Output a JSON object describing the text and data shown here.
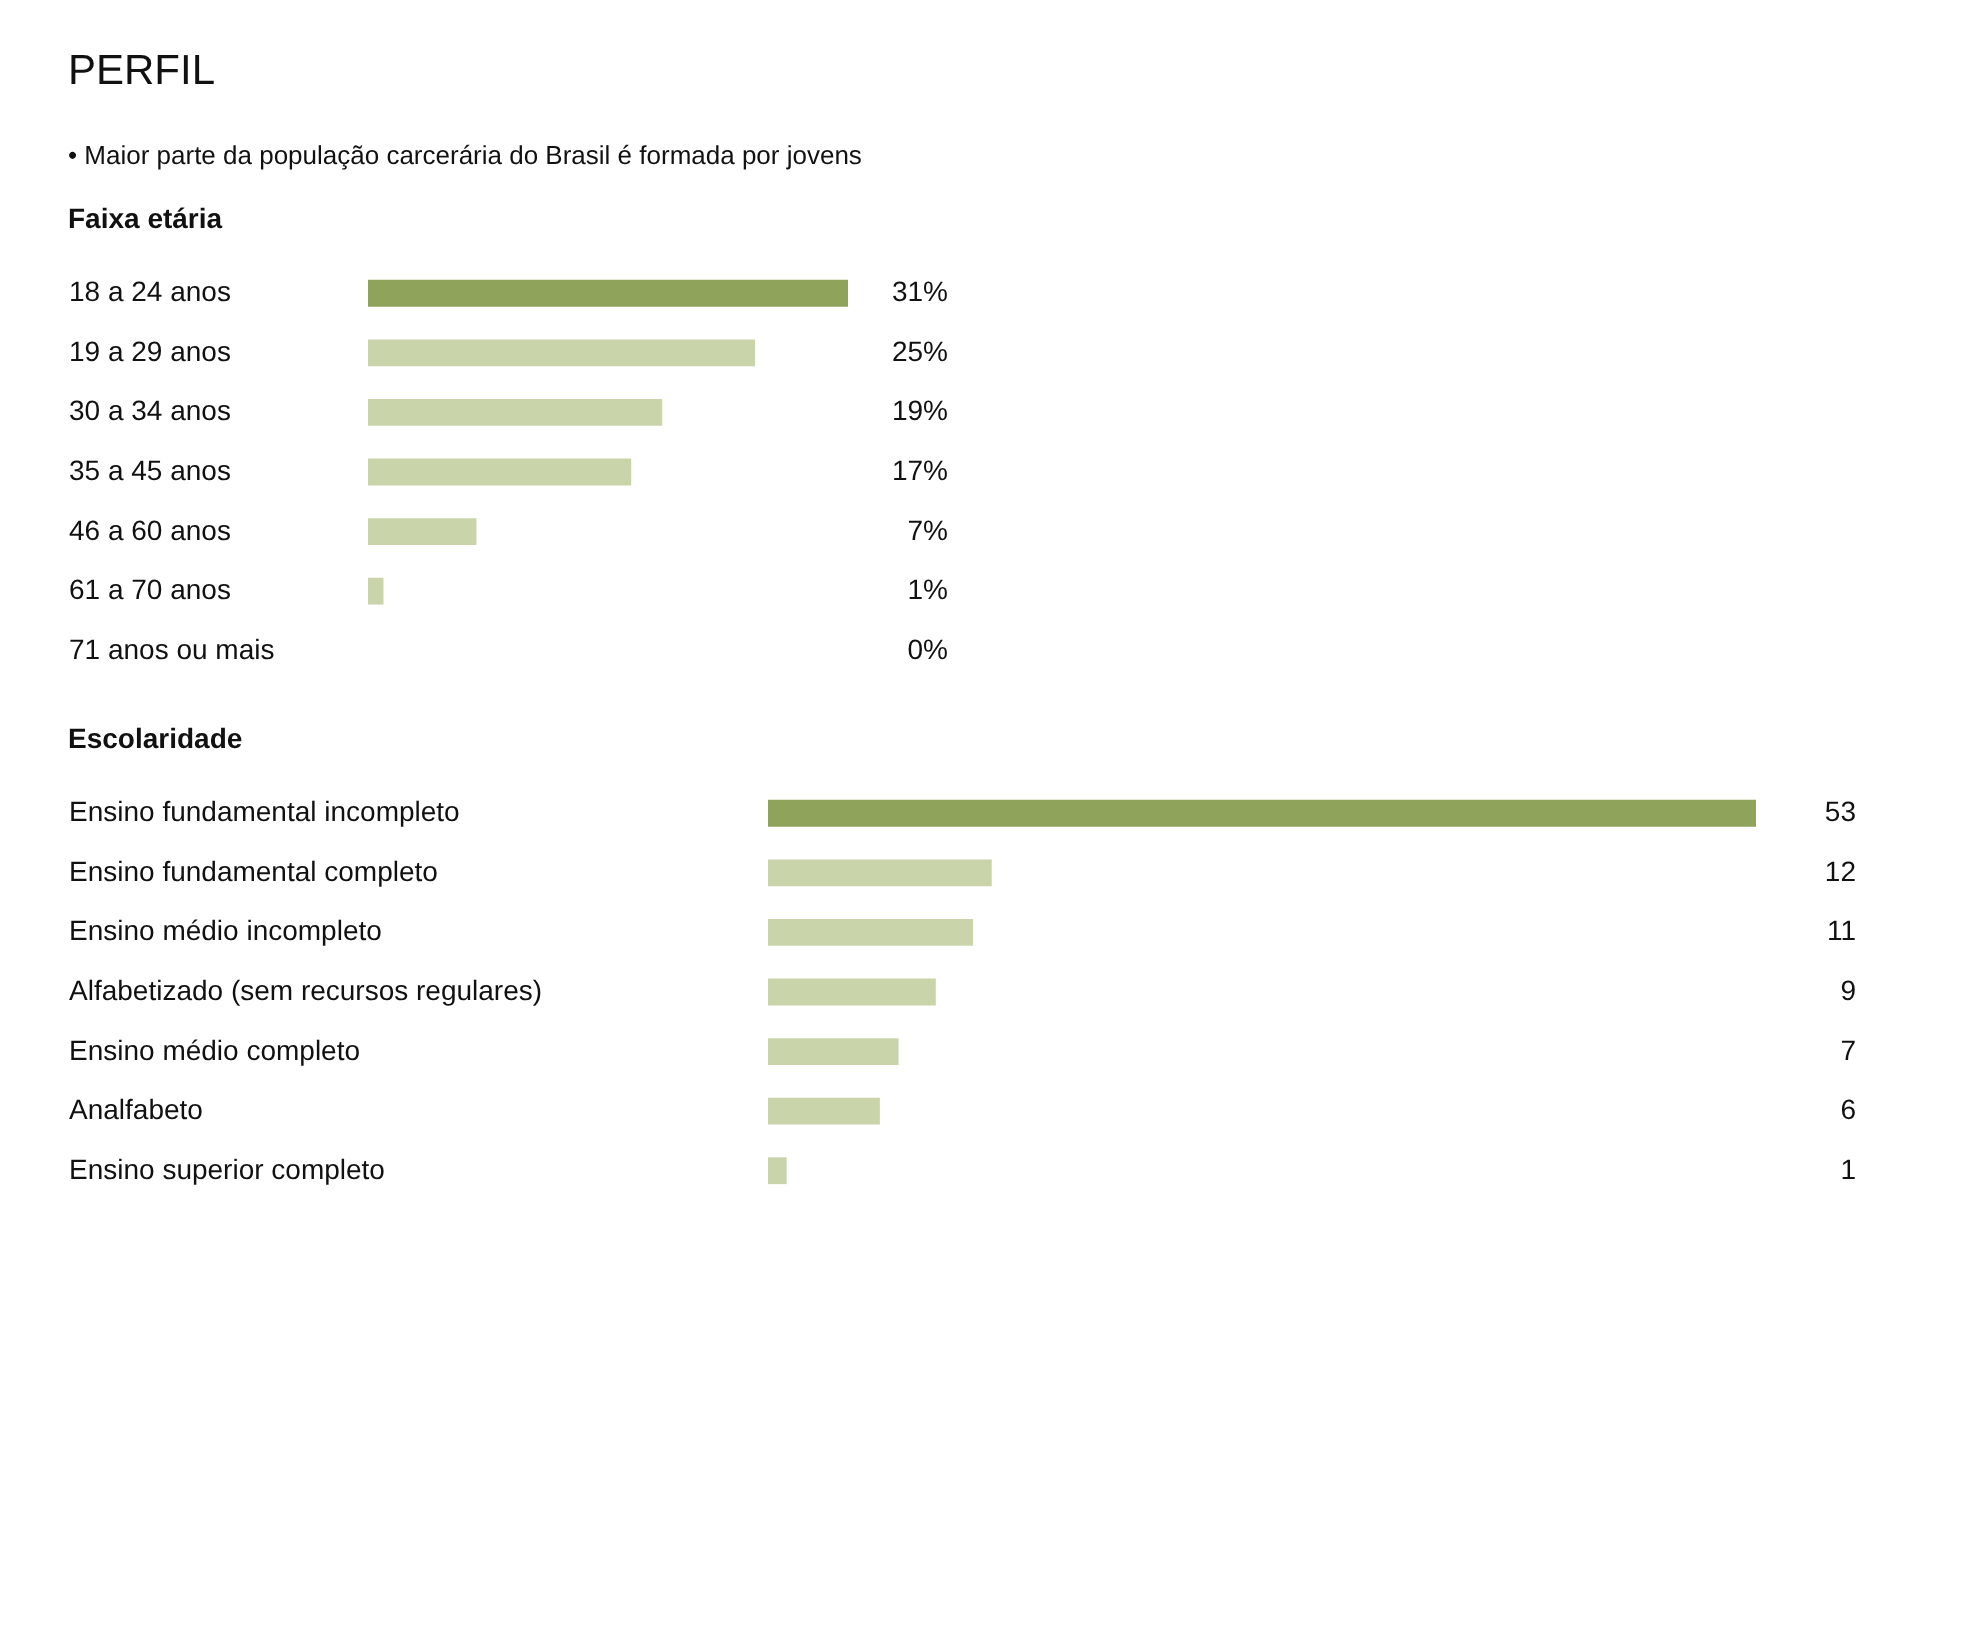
{
  "chart_data": [
    {
      "type": "bar",
      "orientation": "horizontal",
      "title": "Faixa etária",
      "annotations": [
        "PERFIL",
        "• Maior parte da população carcerária do Brasil é formada por jovens"
      ],
      "categories": [
        "18 a 24 anos",
        "19 a 29 anos",
        "30 a 34 anos",
        "35 a 45 anos",
        "46 a 60 anos",
        "61 a 70 anos",
        "71 anos ou mais"
      ],
      "values": [
        31,
        25,
        19,
        17,
        7,
        1,
        0
      ],
      "value_labels": [
        "31%",
        "25%",
        "19%",
        "17%",
        "7%",
        "1%",
        "0%"
      ],
      "colors": [
        "#8fa35a",
        "#c9d4aa",
        "#c9d4aa",
        "#c9d4aa",
        "#c9d4aa",
        "#c9d4aa",
        "#c9d4aa"
      ],
      "tick_labels": "y",
      "legend": false
    },
    {
      "type": "bar",
      "orientation": "horizontal",
      "title": "Escolaridade",
      "categories": [
        "Ensino fundamental incompleto",
        "Ensino fundamental completo",
        "Ensino médio incompleto",
        "Alfabetizado (sem recursos regulares)",
        "Ensino médio completo",
        "Analfabeto",
        "Ensino superior completo"
      ],
      "values": [
        53,
        12,
        11,
        9,
        7,
        6,
        1
      ],
      "data_labels": true,
      "colors": [
        "#8fa35a",
        "#c9d4aa",
        "#c9d4aa",
        "#c9d4aa",
        "#c9d4aa",
        "#c9d4aa",
        "#c9d4aa"
      ],
      "tick_labels": "y",
      "legend": false
    }
  ]
}
